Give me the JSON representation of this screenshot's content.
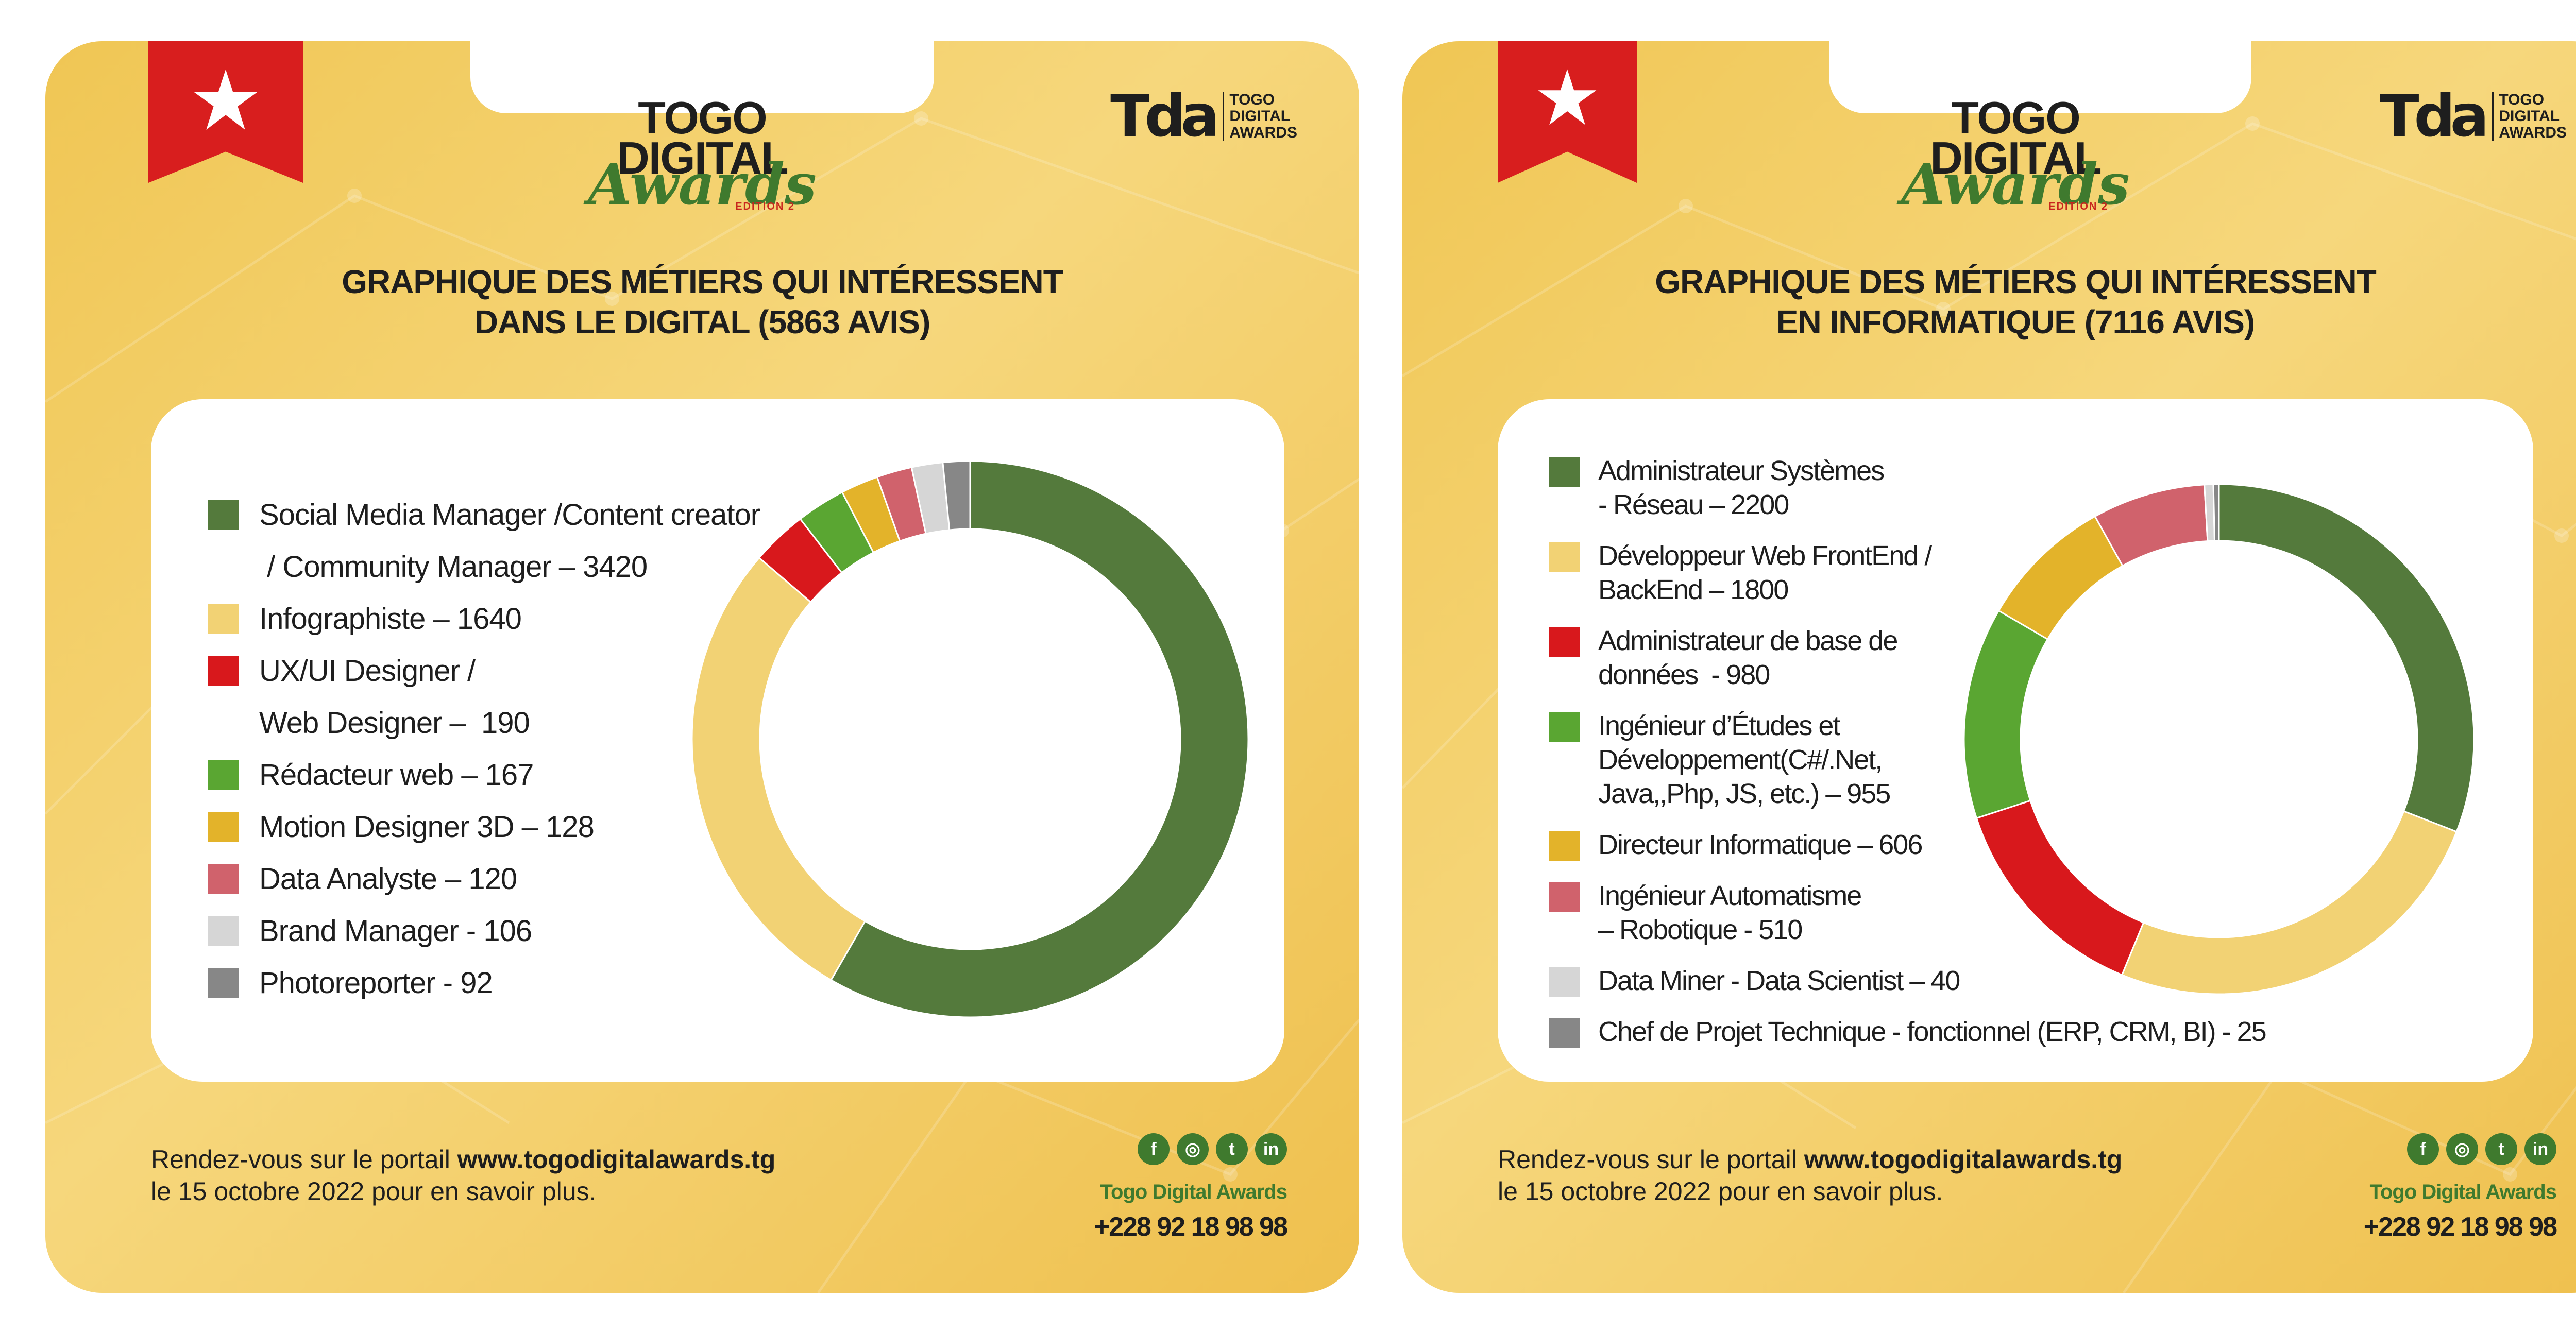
{
  "brand": {
    "top_line": "TOGO",
    "mid_line": "DIGITAL",
    "script": "Awards",
    "edition": "EDITION 2",
    "tda_mark": "Tda",
    "tda_text": [
      "TOGO",
      "DIGITAL",
      "AWARDS"
    ]
  },
  "colors": {
    "panel_bg": "#f3cd62",
    "dark_green": "#547a3c",
    "light_yellow": "#f2d274",
    "red": "#d8181c",
    "green": "#5aa632",
    "mustard": "#e3b32a",
    "pink": "#d0626c",
    "light_gray": "#d6d6d6",
    "gray": "#878787",
    "ribbon_red": "#d81e1e"
  },
  "footer": {
    "line1_prefix": "Rendez-vous sur le portail ",
    "url": "www.togodigitalawards.tg",
    "line2": "le 15 octobre 2022 pour en savoir plus.",
    "org_name": "Togo Digital Awards",
    "phone": "+228 92 18 98 98",
    "social_icons": [
      "facebook-icon",
      "instagram-icon",
      "twitter-icon",
      "linkedin-icon"
    ],
    "social_glyphs": [
      "f",
      "◎",
      "t",
      "in"
    ]
  },
  "chart_data": [
    {
      "type": "pie",
      "donut": true,
      "title_lines": [
        "GRAPHIQUE DES MÉTIERS QUI INTÉRESSENT",
        "DANS LE DIGITAL (5863 AVIS)"
      ],
      "categories": [
        "Social Media Manager /Content creator / Community Manager",
        "Infographiste",
        "UX/UI Designer / Web Designer",
        "Rédacteur web",
        "Motion Designer 3D",
        "Data Analyste",
        "Brand Manager",
        "Photoreporter"
      ],
      "values": [
        3420,
        1640,
        190,
        167,
        128,
        120,
        106,
        92
      ],
      "colors": [
        "#547a3c",
        "#f2d274",
        "#d8181c",
        "#5aa632",
        "#e3b32a",
        "#d0626c",
        "#d6d6d6",
        "#878787"
      ],
      "legend_lines": [
        [
          "Social Media Manager /Content creator",
          " / Community Manager – 3420"
        ],
        [
          "Infographiste – 1640"
        ],
        [
          "UX/UI Designer /",
          "Web Designer –  190"
        ],
        [
          "Rédacteur web – 167"
        ],
        [
          "Motion Designer 3D – 128"
        ],
        [
          "Data Analyste – 120"
        ],
        [
          "Brand Manager - 106"
        ],
        [
          "Photoreporter - 92"
        ]
      ],
      "legend_position": "left"
    },
    {
      "type": "pie",
      "donut": true,
      "title_lines": [
        "GRAPHIQUE DES MÉTIERS QUI INTÉRESSENT",
        "EN INFORMATIQUE (7116 AVIS)"
      ],
      "categories": [
        "Administrateur Systèmes - Réseau",
        "Développeur Web FrontEnd / BackEnd",
        "Administrateur de base de données",
        "Ingénieur d’Études et Développement(C#/.Net, Java,,Php, JS, etc.)",
        "Directeur Informatique",
        "Ingénieur Automatisme – Robotique",
        "Data Miner - Data Scientist",
        "Chef de Projet Technique - fonctionnel (ERP, CRM, BI)"
      ],
      "values": [
        2200,
        1800,
        980,
        955,
        606,
        510,
        40,
        25
      ],
      "colors": [
        "#547a3c",
        "#f2d274",
        "#d8181c",
        "#5aa632",
        "#e3b32a",
        "#d0626c",
        "#d6d6d6",
        "#878787"
      ],
      "legend_lines": [
        [
          "Administrateur Systèmes",
          "- Réseau – 2200"
        ],
        [
          "Développeur Web FrontEnd /",
          "BackEnd – 1800"
        ],
        [
          "Administrateur de base de",
          "données  - 980"
        ],
        [
          "Ingénieur d’Études et",
          "Développement(C#/.Net,",
          "Java,,Php, JS, etc.) – 955"
        ],
        [
          "Directeur Informatique – 606"
        ],
        [
          "Ingénieur Automatisme",
          "– Robotique - 510"
        ],
        [
          "Data Miner - Data Scientist – 40"
        ],
        [
          "Chef de Projet Technique - fonctionnel (ERP, CRM, BI) - 25"
        ]
      ],
      "legend_position": "left"
    }
  ]
}
